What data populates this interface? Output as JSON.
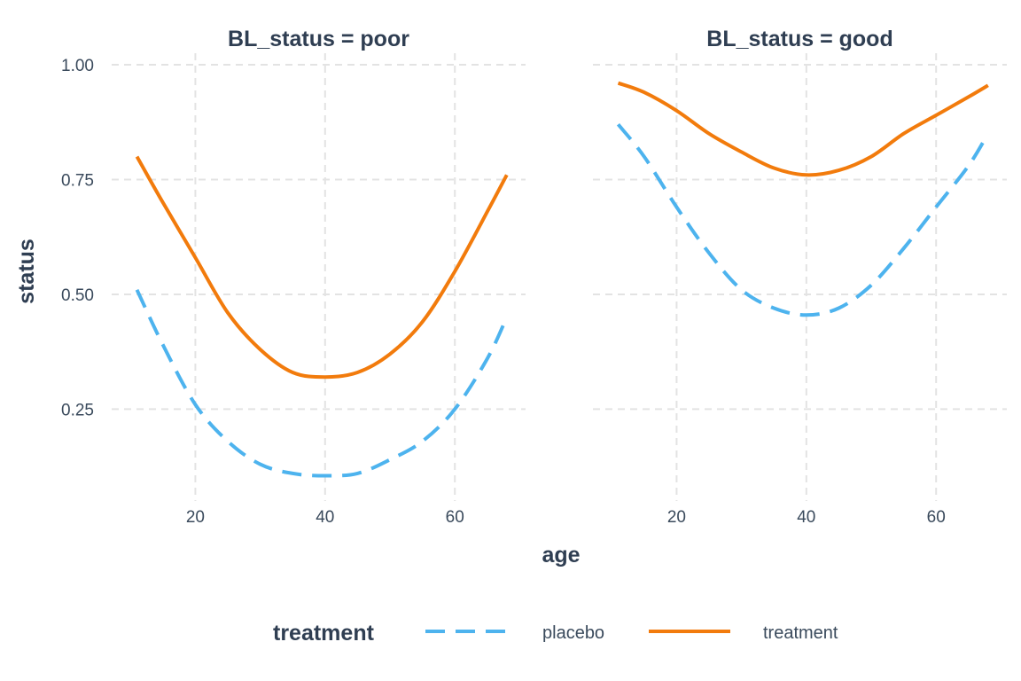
{
  "chart_data": {
    "type": "line",
    "xlabel": "age",
    "ylabel": "status",
    "xlim": [
      10,
      68
    ],
    "ylim": [
      0.05,
      1.0
    ],
    "xticks": [
      20,
      40,
      60
    ],
    "yticks": [
      0.25,
      0.5,
      0.75,
      1.0
    ],
    "ytick_labels": [
      "0.25",
      "0.50",
      "0.75",
      "1.00"
    ],
    "grid": true,
    "legend": {
      "title": "treatment",
      "position": "bottom",
      "entries": [
        {
          "label": "placebo",
          "color": "#4db3ee",
          "dash": "dashed"
        },
        {
          "label": "treatment",
          "color": "#f27b0c",
          "dash": "solid"
        }
      ]
    },
    "panels": [
      {
        "title": "BL_status = poor",
        "series": [
          {
            "name": "placebo",
            "color": "#4db3ee",
            "dash": "dashed",
            "x": [
              11,
              15,
              20,
              25,
              30,
              35,
              40,
              45,
              50,
              55,
              60,
              65,
              68
            ],
            "y": [
              0.51,
              0.39,
              0.26,
              0.18,
              0.13,
              0.11,
              0.105,
              0.11,
              0.14,
              0.18,
              0.25,
              0.36,
              0.45
            ]
          },
          {
            "name": "treatment",
            "color": "#f27b0c",
            "dash": "solid",
            "x": [
              11,
              15,
              20,
              25,
              30,
              35,
              40,
              45,
              50,
              55,
              60,
              65,
              68
            ],
            "y": [
              0.8,
              0.7,
              0.58,
              0.46,
              0.38,
              0.33,
              0.32,
              0.33,
              0.37,
              0.44,
              0.55,
              0.68,
              0.76
            ]
          }
        ]
      },
      {
        "title": "BL_status = good",
        "series": [
          {
            "name": "placebo",
            "color": "#4db3ee",
            "dash": "dashed",
            "x": [
              11,
              15,
              20,
              25,
              30,
              35,
              40,
              45,
              50,
              55,
              60,
              65,
              68
            ],
            "y": [
              0.87,
              0.8,
              0.69,
              0.59,
              0.51,
              0.47,
              0.455,
              0.47,
              0.52,
              0.6,
              0.69,
              0.78,
              0.85
            ]
          },
          {
            "name": "treatment",
            "color": "#f27b0c",
            "dash": "solid",
            "x": [
              11,
              15,
              20,
              25,
              30,
              35,
              40,
              45,
              50,
              55,
              60,
              65,
              68
            ],
            "y": [
              0.96,
              0.94,
              0.9,
              0.85,
              0.81,
              0.775,
              0.76,
              0.77,
              0.8,
              0.85,
              0.89,
              0.93,
              0.955
            ]
          }
        ]
      }
    ]
  }
}
